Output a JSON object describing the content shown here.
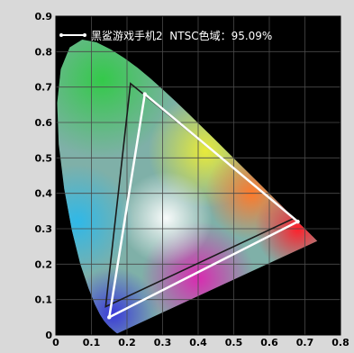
{
  "chart_data": {
    "type": "scatter",
    "title": "",
    "xlabel": "",
    "ylabel": "",
    "xlim": [
      0,
      0.8
    ],
    "ylim": [
      0,
      0.9
    ],
    "grid": true,
    "legend": {
      "placement": "top-left",
      "text": "黑鲨游戏手机2  NTSC色域：95.09%"
    },
    "x_ticks": [
      "0",
      "0.1",
      "0.2",
      "0.3",
      "0.4",
      "0.5",
      "0.6",
      "0.7",
      "0.8"
    ],
    "y_ticks": [
      "0",
      "0.1",
      "0.2",
      "0.3",
      "0.4",
      "0.5",
      "0.6",
      "0.7",
      "0.8",
      "0.9"
    ],
    "x_tick_values": [
      0,
      0.1,
      0.2,
      0.3,
      0.4,
      0.5,
      0.6,
      0.7,
      0.8
    ],
    "y_tick_values": [
      0,
      0.1,
      0.2,
      0.3,
      0.4,
      0.5,
      0.6,
      0.7,
      0.8,
      0.9
    ],
    "series": [
      {
        "name": "黑鲨游戏手机2",
        "color": "#ffffff",
        "points": [
          [
            0.25,
            0.68
          ],
          [
            0.68,
            0.32
          ],
          [
            0.15,
            0.05
          ]
        ]
      },
      {
        "color": "#1a1a1a",
        "points": [
          [
            0.21,
            0.71
          ],
          [
            0.67,
            0.33
          ],
          [
            0.14,
            0.08
          ]
        ]
      }
    ],
    "spectral_locus": [
      [
        0.1741,
        0.005
      ],
      [
        0.1738,
        0.0049
      ],
      [
        0.1736,
        0.0049
      ],
      [
        0.1733,
        0.0048
      ],
      [
        0.173,
        0.0048
      ],
      [
        0.1726,
        0.0048
      ],
      [
        0.1721,
        0.0048
      ],
      [
        0.1714,
        0.0051
      ],
      [
        0.1703,
        0.0058
      ],
      [
        0.1689,
        0.0069
      ],
      [
        0.1669,
        0.0086
      ],
      [
        0.1644,
        0.0109
      ],
      [
        0.1611,
        0.0138
      ],
      [
        0.1566,
        0.0177
      ],
      [
        0.151,
        0.0227
      ],
      [
        0.144,
        0.0297
      ],
      [
        0.1355,
        0.0399
      ],
      [
        0.1241,
        0.0578
      ],
      [
        0.1096,
        0.0868
      ],
      [
        0.0913,
        0.1327
      ],
      [
        0.0687,
        0.2007
      ],
      [
        0.0454,
        0.295
      ],
      [
        0.0235,
        0.4127
      ],
      [
        0.0082,
        0.5384
      ],
      [
        0.0039,
        0.6548
      ],
      [
        0.0139,
        0.7502
      ],
      [
        0.0389,
        0.812
      ],
      [
        0.0743,
        0.8338
      ],
      [
        0.1142,
        0.8262
      ],
      [
        0.1547,
        0.8059
      ],
      [
        0.1929,
        0.7816
      ],
      [
        0.2296,
        0.7543
      ],
      [
        0.2658,
        0.7243
      ],
      [
        0.3016,
        0.6923
      ],
      [
        0.3373,
        0.6589
      ],
      [
        0.3731,
        0.6245
      ],
      [
        0.4087,
        0.5896
      ],
      [
        0.4441,
        0.5547
      ],
      [
        0.4788,
        0.5202
      ],
      [
        0.5125,
        0.4866
      ],
      [
        0.5448,
        0.4544
      ],
      [
        0.5752,
        0.4242
      ],
      [
        0.6029,
        0.3965
      ],
      [
        0.627,
        0.3725
      ],
      [
        0.6482,
        0.3514
      ],
      [
        0.6658,
        0.334
      ],
      [
        0.6801,
        0.3197
      ],
      [
        0.6915,
        0.3083
      ],
      [
        0.7006,
        0.2993
      ],
      [
        0.7079,
        0.292
      ],
      [
        0.714,
        0.2859
      ],
      [
        0.719,
        0.2809
      ],
      [
        0.723,
        0.277
      ],
      [
        0.726,
        0.274
      ],
      [
        0.7283,
        0.2717
      ],
      [
        0.73,
        0.27
      ],
      [
        0.7311,
        0.2689
      ],
      [
        0.732,
        0.268
      ],
      [
        0.7327,
        0.2673
      ],
      [
        0.7334,
        0.2666
      ],
      [
        0.734,
        0.266
      ],
      [
        0.7344,
        0.2656
      ],
      [
        0.7346,
        0.2654
      ],
      [
        0.7347,
        0.2653
      ]
    ],
    "colors": {
      "plot_background": "#000000",
      "page_background": "#d9d9d9",
      "grid": "#4a4a4a"
    }
  }
}
